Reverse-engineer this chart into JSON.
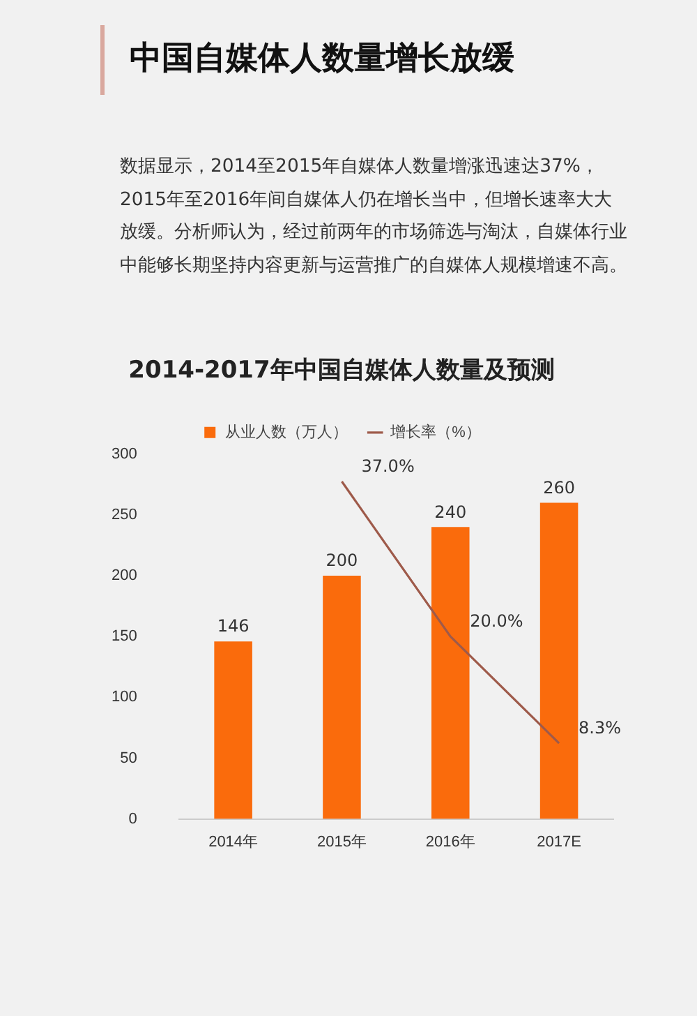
{
  "chart_data": {
    "type": "bar",
    "title": "2014-2017年中国自媒体人数量及预测",
    "annotations": [
      "中国自媒体人数量增长放缓",
      "数据显示，2014至2015年自媒体人数量增涨迅速达37%，2015年至2016年间自媒体人仍在增长当中，但增长速率大大放缓。分析师认为，经过前两年的市场筛选与淘汰，自媒体行业中能够长期坚持内容更新与运营推广的自媒体人规模增速不高。"
    ],
    "categories": [
      "2014年",
      "2015年",
      "2016年",
      "2017E"
    ],
    "series": [
      {
        "name": "从业人数（万人）",
        "color": "#fa6b0c",
        "values": [
          146,
          200,
          240,
          260
        ],
        "value_labels": [
          "146",
          "200",
          "240",
          "260"
        ]
      },
      {
        "name": "增长率（%）",
        "type": "line",
        "axis": "y2",
        "color": "#9e5a4a",
        "values": [
          null,
          37.0,
          20.0,
          8.3
        ],
        "value_labels": [
          null,
          "37.0%",
          "20.0%",
          "8.3%"
        ]
      }
    ],
    "ylim": [
      0,
      300
    ],
    "yticks": [
      0,
      50,
      100,
      150,
      200,
      250,
      300
    ],
    "legend": "top",
    "marker": "none"
  }
}
